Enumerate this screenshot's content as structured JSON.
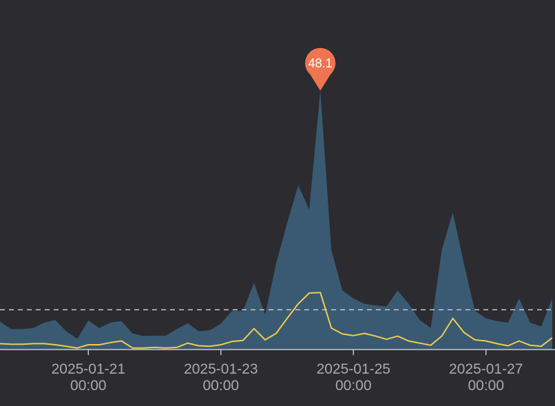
{
  "chart_data": {
    "type": "area",
    "x_axis": {
      "ticks": [
        {
          "date": "2025-01-21",
          "line1": "2025-01-21",
          "line2": "00:00"
        },
        {
          "date": "2025-01-23",
          "line1": "2025-01-23",
          "line2": "00:00"
        },
        {
          "date": "2025-01-25",
          "line1": "2025-01-25",
          "line2": "00:00"
        },
        {
          "date": "2025-01-27",
          "line1": "2025-01-27",
          "line2": "00:00"
        }
      ],
      "range": [
        "2025-01-19T16:00",
        "2025-01-28T01:00"
      ]
    },
    "y_axis": {
      "range": [
        0,
        56
      ],
      "labels_visible": false
    },
    "grid": false,
    "legend": "none",
    "x": [
      "2025-01-19T16:00",
      "2025-01-19T20:00",
      "2025-01-20T00:00",
      "2025-01-20T04:00",
      "2025-01-20T08:00",
      "2025-01-20T12:00",
      "2025-01-20T16:00",
      "2025-01-20T20:00",
      "2025-01-21T00:00",
      "2025-01-21T04:00",
      "2025-01-21T08:00",
      "2025-01-21T12:00",
      "2025-01-21T16:00",
      "2025-01-21T20:00",
      "2025-01-22T00:00",
      "2025-01-22T04:00",
      "2025-01-22T08:00",
      "2025-01-22T12:00",
      "2025-01-22T16:00",
      "2025-01-22T20:00",
      "2025-01-23T00:00",
      "2025-01-23T04:00",
      "2025-01-23T08:00",
      "2025-01-23T12:00",
      "2025-01-23T16:00",
      "2025-01-23T20:00",
      "2025-01-24T00:00",
      "2025-01-24T04:00",
      "2025-01-24T08:00",
      "2025-01-24T12:00",
      "2025-01-24T16:00",
      "2025-01-24T20:00",
      "2025-01-25T00:00",
      "2025-01-25T04:00",
      "2025-01-25T08:00",
      "2025-01-25T12:00",
      "2025-01-25T16:00",
      "2025-01-25T20:00",
      "2025-01-26T00:00",
      "2025-01-26T04:00",
      "2025-01-26T08:00",
      "2025-01-26T12:00",
      "2025-01-26T16:00",
      "2025-01-26T20:00",
      "2025-01-27T00:00",
      "2025-01-27T04:00",
      "2025-01-27T08:00",
      "2025-01-27T12:00",
      "2025-01-27T16:00",
      "2025-01-27T20:00",
      "2025-01-28T00:00"
    ],
    "series": [
      {
        "fill": "#3a5a73",
        "values": [
          5.2,
          3.8,
          3.8,
          4.0,
          5.0,
          5.5,
          3.4,
          2.0,
          5.4,
          4.0,
          5.0,
          5.3,
          3.0,
          2.5,
          2.6,
          2.6,
          3.8,
          4.9,
          3.4,
          3.6,
          4.8,
          7.2,
          7.2,
          12.4,
          6.5,
          16.0,
          23.5,
          30.5,
          26.0,
          48.1,
          18.5,
          11.0,
          9.5,
          8.5,
          8.2,
          8.0,
          11.0,
          8.5,
          5.5,
          4.0,
          18.5,
          25.5,
          16.0,
          7.2,
          5.8,
          5.3,
          5.0,
          9.5,
          5.0,
          4.3,
          9.5
        ]
      },
      {
        "color": "#f2cc4c",
        "values": [
          1.1,
          1.0,
          1.0,
          1.1,
          1.1,
          0.9,
          0.6,
          0.3,
          0.9,
          0.9,
          1.3,
          1.6,
          0.3,
          0.3,
          0.4,
          0.3,
          0.4,
          1.2,
          0.7,
          0.6,
          0.9,
          1.5,
          1.7,
          3.9,
          1.8,
          3.0,
          5.8,
          8.5,
          10.5,
          10.6,
          4.0,
          2.9,
          2.6,
          3.0,
          2.5,
          1.9,
          2.5,
          1.6,
          1.2,
          0.8,
          2.5,
          5.8,
          3.2,
          1.8,
          1.6,
          1.1,
          0.7,
          1.6,
          0.8,
          0.6,
          2.2
        ]
      }
    ],
    "reference_line": {
      "value": 7.4,
      "style": "dashed",
      "color": "#c9c9cc"
    },
    "max_marker": {
      "label": "48.1",
      "value": 48.1,
      "x": "2025-01-24T12:00",
      "color": "#ee7550"
    }
  }
}
